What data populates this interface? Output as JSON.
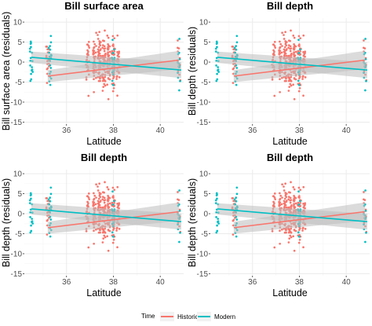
{
  "colors": {
    "historic": "#f8766d",
    "modern": "#00bfc4",
    "ci_band": "#bdbdbd",
    "panel_bg": "#ffffff",
    "grid_major": "#ebebeb",
    "grid_minor": "#f5f5f5"
  },
  "legend": {
    "title": "Time",
    "items": [
      "Historic",
      "Modern"
    ],
    "placement": "bottom"
  },
  "chart_data": [
    {
      "type": "scatter",
      "title": "Bill surface area",
      "xlabel": "Latitude",
      "ylabel": "Bill surface area (residuals)",
      "xlim": [
        34.2,
        41.0
      ],
      "ylim": [
        -15.5,
        11
      ],
      "xticks": [
        36,
        38,
        40
      ],
      "yticks": [
        -15,
        -10,
        -5,
        0,
        5,
        10
      ],
      "grid": true,
      "series": [
        {
          "name": "Historic",
          "columns": [
            35.2,
            36.9,
            37.2,
            37.4,
            37.6,
            37.8,
            38.0,
            38.2,
            40.8
          ],
          "fit": {
            "x": [
              35.2,
              40.8
            ],
            "y": [
              -3.5,
              0.5
            ],
            "ci_lo": [
              -5.0,
              -1.8
            ],
            "ci_hi": [
              -2.0,
              2.8
            ]
          }
        },
        {
          "name": "Modern",
          "columns": [
            34.5,
            35.3,
            38.0,
            40.8
          ],
          "fit": {
            "x": [
              34.5,
              40.9
            ],
            "y": [
              1.2,
              -2.0
            ],
            "ci_lo": [
              -0.2,
              -4.0
            ],
            "ci_hi": [
              2.6,
              0.0
            ]
          }
        }
      ]
    },
    {
      "type": "scatter",
      "title": "Bill depth",
      "xlabel": "Latitude",
      "ylabel": "Bill depth (residuals)",
      "xlim": [
        34.2,
        41.0
      ],
      "ylim": [
        -15.5,
        11
      ],
      "xticks": [
        36,
        38,
        40
      ],
      "yticks": [
        -15,
        -10,
        -5,
        0,
        5,
        10
      ],
      "grid": true,
      "series": [
        {
          "name": "Historic",
          "columns": [
            35.2,
            36.9,
            37.2,
            37.4,
            37.6,
            37.8,
            38.0,
            38.2,
            40.8
          ],
          "fit": {
            "x": [
              35.2,
              40.8
            ],
            "y": [
              -3.5,
              0.5
            ],
            "ci_lo": [
              -5.0,
              -1.8
            ],
            "ci_hi": [
              -2.0,
              2.8
            ]
          }
        },
        {
          "name": "Modern",
          "columns": [
            34.5,
            35.3,
            38.0,
            40.8
          ],
          "fit": {
            "x": [
              34.5,
              40.9
            ],
            "y": [
              1.2,
              -2.0
            ],
            "ci_lo": [
              -0.2,
              -4.0
            ],
            "ci_hi": [
              2.6,
              0.0
            ]
          }
        }
      ]
    },
    {
      "type": "scatter",
      "title": "Bill depth",
      "xlabel": "Latitude",
      "ylabel": "Bill depth (residuals)",
      "xlim": [
        34.2,
        41.0
      ],
      "ylim": [
        -15.5,
        11
      ],
      "xticks": [
        36,
        38,
        40
      ],
      "yticks": [
        -15,
        -10,
        -5,
        0,
        5,
        10
      ],
      "grid": true,
      "series": [
        {
          "name": "Historic",
          "columns": [
            35.2,
            36.9,
            37.2,
            37.4,
            37.6,
            37.8,
            38.0,
            38.2,
            40.8
          ],
          "fit": {
            "x": [
              35.2,
              40.8
            ],
            "y": [
              -3.5,
              0.5
            ],
            "ci_lo": [
              -5.0,
              -1.8
            ],
            "ci_hi": [
              -2.0,
              2.8
            ]
          }
        },
        {
          "name": "Modern",
          "columns": [
            34.5,
            35.3,
            38.0,
            40.8
          ],
          "fit": {
            "x": [
              34.5,
              40.9
            ],
            "y": [
              1.2,
              -2.0
            ],
            "ci_lo": [
              -0.2,
              -4.0
            ],
            "ci_hi": [
              2.6,
              0.0
            ]
          }
        }
      ]
    },
    {
      "type": "scatter",
      "title": "Bill depth",
      "xlabel": "Latitude",
      "ylabel": "Bill depth (residuals)",
      "xlim": [
        34.2,
        41.0
      ],
      "ylim": [
        -15.5,
        11
      ],
      "xticks": [
        36,
        38,
        40
      ],
      "yticks": [
        -15,
        -10,
        -5,
        0,
        5,
        10
      ],
      "grid": true,
      "series": [
        {
          "name": "Historic",
          "columns": [
            35.2,
            36.9,
            37.2,
            37.4,
            37.6,
            37.8,
            38.0,
            38.2,
            40.8
          ],
          "fit": {
            "x": [
              35.2,
              40.8
            ],
            "y": [
              -3.5,
              0.5
            ],
            "ci_lo": [
              -5.0,
              -1.8
            ],
            "ci_hi": [
              -2.0,
              2.8
            ]
          }
        },
        {
          "name": "Modern",
          "columns": [
            34.5,
            35.3,
            38.0,
            40.8
          ],
          "fit": {
            "x": [
              34.5,
              40.9
            ],
            "y": [
              1.2,
              -2.0
            ],
            "ci_lo": [
              -0.2,
              -4.0
            ],
            "ci_hi": [
              2.6,
              0.0
            ]
          }
        }
      ]
    }
  ]
}
